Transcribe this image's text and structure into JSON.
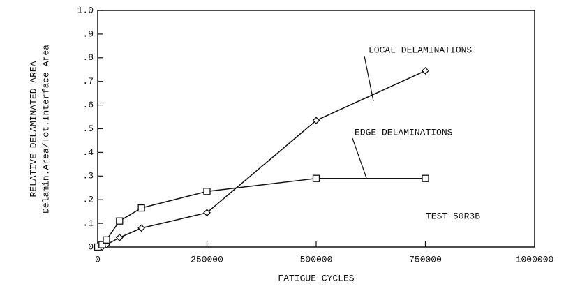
{
  "chart_data": {
    "type": "line",
    "ylabel": [
      "RELATIVE DELAMINATED AREA",
      "Delamin.Area/Tot.Interface Area"
    ],
    "xlabel": "FATIGUE CYCLES",
    "annotations": [
      "LOCAL DELAMINATIONS",
      "EDGE DELAMINATIONS",
      "TEST 50R3B"
    ],
    "series": [
      {
        "name": "LOCAL DELAMINATIONS",
        "color": "#111111",
        "marker": "diamond",
        "x": [
          0,
          10000,
          20000,
          50000,
          100000,
          250000,
          500000,
          750000
        ],
        "values": [
          0,
          0,
          0.01,
          0.04,
          0.08,
          0.145,
          0.535,
          0.745
        ]
      },
      {
        "name": "EDGE DELAMINATIONS",
        "color": "#111111",
        "marker": "square",
        "x": [
          0,
          10000,
          20000,
          50000,
          100000,
          250000,
          500000,
          750000
        ],
        "values": [
          0,
          0.01,
          0.03,
          0.11,
          0.165,
          0.235,
          0.29,
          0.29
        ]
      }
    ],
    "xlim": [
      0,
      1000000
    ],
    "xticks": [
      0,
      250000,
      500000,
      750000,
      1000000
    ],
    "ylim": [
      0,
      1
    ],
    "yticks": [
      0,
      {
        "value": 0.1,
        "label": ".1"
      },
      {
        "value": 0.2,
        "label": ".2"
      },
      {
        "value": 0.3,
        "label": ".3"
      },
      {
        "value": 0.4,
        "label": ".4"
      },
      {
        "value": 0.5,
        "label": ".5"
      },
      {
        "value": 0.6,
        "label": ".6"
      },
      {
        "value": 0.7,
        "label": ".7"
      },
      {
        "value": 0.8,
        "label": ".8"
      },
      {
        "value": 0.9,
        "label": ".9"
      },
      {
        "value": 1,
        "label": "1.0"
      }
    ],
    "grid": false
  }
}
